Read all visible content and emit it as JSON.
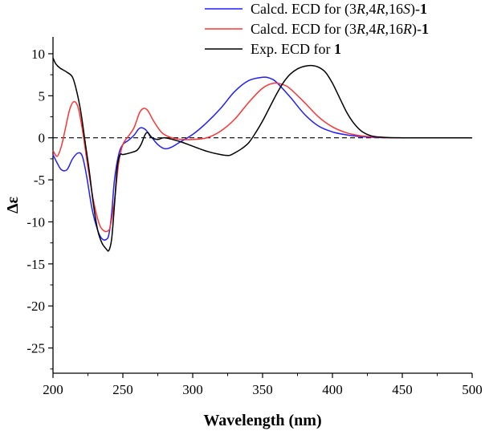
{
  "chart_data": {
    "type": "line",
    "title": "",
    "xlabel": "Wavelength (nm)",
    "ylabel": "Δε",
    "xlim": [
      200,
      500
    ],
    "ylim": [
      -28,
      12
    ],
    "xticks": [
      200,
      250,
      300,
      350,
      400,
      450,
      500
    ],
    "yticks": [
      10,
      5,
      0,
      -5,
      -10,
      -15,
      -20,
      -25
    ],
    "grid": false,
    "zero_line": "dashed",
    "legend": {
      "placement": "top-right",
      "entries": [
        {
          "series": 0,
          "prefix": "Calcd. ECD for (3",
          "parts": [
            [
              "R",
              "italic"
            ],
            [
              ",4",
              "normal"
            ],
            [
              "R",
              "italic"
            ],
            [
              ",16",
              "normal"
            ],
            [
              "S",
              "italic"
            ],
            [
              ")-",
              "normal"
            ],
            [
              "1",
              "bold"
            ]
          ]
        },
        {
          "series": 1,
          "prefix": "Calcd. ECD for  (3",
          "parts": [
            [
              "R",
              "italic"
            ],
            [
              ",4",
              "normal"
            ],
            [
              "R",
              "italic"
            ],
            [
              ",16",
              "normal"
            ],
            [
              "R",
              "italic"
            ],
            [
              ")-",
              "normal"
            ],
            [
              "1",
              "bold"
            ]
          ]
        },
        {
          "series": 2,
          "prefix": "Exp. ECD for ",
          "parts": [
            [
              "1",
              "bold"
            ]
          ]
        }
      ]
    },
    "series": [
      {
        "name": "Calcd. ECD for (3R,4R,16S)-1",
        "color": "#1f1fff",
        "x": [
          200,
          203,
          206,
          210,
          214,
          218,
          221,
          224,
          228,
          232,
          235,
          238,
          240,
          242,
          244,
          247,
          250,
          254,
          258,
          261,
          263,
          266,
          270,
          275,
          280,
          285,
          290,
          300,
          310,
          320,
          330,
          340,
          350,
          355,
          360,
          370,
          380,
          390,
          400,
          410,
          420,
          430,
          440,
          450,
          470,
          500
        ],
        "y": [
          -2,
          -3,
          -3.8,
          -3.8,
          -2.5,
          -1.8,
          -2.2,
          -4.5,
          -8.5,
          -11,
          -12,
          -12.1,
          -11.5,
          -9,
          -5,
          -2,
          -0.8,
          -0.3,
          0.3,
          1,
          1.2,
          1,
          0.2,
          -0.8,
          -1.3,
          -1.1,
          -0.6,
          0.4,
          1.8,
          3.5,
          5.5,
          6.8,
          7.2,
          7.1,
          6.6,
          4.8,
          2.8,
          1.4,
          0.7,
          0.35,
          0.15,
          0.05,
          0,
          0,
          0,
          0
        ]
      },
      {
        "name": "Calcd. ECD for (3R,4R,16R)-1",
        "color": "#ff3333",
        "x": [
          200,
          203,
          206,
          209,
          212,
          215,
          218,
          221,
          225,
          229,
          233,
          236,
          239,
          241,
          244,
          247,
          250,
          254,
          258,
          262,
          265,
          268,
          272,
          278,
          285,
          292,
          300,
          310,
          320,
          330,
          340,
          350,
          358,
          365,
          370,
          380,
          390,
          400,
          410,
          420,
          430,
          440,
          450,
          470,
          500
        ],
        "y": [
          -1.5,
          -2.2,
          -1,
          1.2,
          3.4,
          4.3,
          3.6,
          1,
          -3.5,
          -7.5,
          -10.2,
          -11,
          -11.1,
          -10.5,
          -7.5,
          -3,
          -0.8,
          0.2,
          1.2,
          3,
          3.5,
          3.2,
          2,
          0.6,
          0,
          -0.2,
          -0.2,
          0,
          0.8,
          2.2,
          4.2,
          5.9,
          6.5,
          6.3,
          5.8,
          4.2,
          2.5,
          1.3,
          0.6,
          0.25,
          0.1,
          0,
          0,
          0,
          0
        ]
      },
      {
        "name": "Exp. ECD for 1",
        "color": "#000000",
        "x": [
          200,
          202,
          205,
          210,
          214,
          217,
          220,
          223,
          226,
          229,
          232,
          235,
          238,
          240,
          242,
          244,
          246,
          248,
          250,
          255,
          260,
          263,
          266,
          268,
          270,
          275,
          280,
          290,
          300,
          310,
          320,
          326,
          330,
          335,
          340,
          345,
          350,
          355,
          360,
          365,
          370,
          375,
          380,
          385,
          390,
          395,
          400,
          405,
          410,
          415,
          420,
          425,
          430,
          440,
          450,
          460,
          480,
          500
        ],
        "y": [
          9.5,
          8.8,
          8.3,
          7.8,
          7.2,
          5.5,
          3,
          -0.5,
          -4,
          -8,
          -11,
          -12.5,
          -13.2,
          -13.4,
          -12,
          -8,
          -3.5,
          -2,
          -2,
          -1.8,
          -1.5,
          -0.8,
          0.4,
          0.6,
          0.1,
          -0.2,
          0,
          -0.4,
          -1,
          -1.6,
          -2,
          -2.1,
          -1.8,
          -1.3,
          -0.6,
          0.6,
          2,
          3.6,
          5.2,
          6.6,
          7.6,
          8.2,
          8.5,
          8.6,
          8.4,
          7.8,
          6.5,
          4.8,
          3.1,
          1.8,
          0.9,
          0.4,
          0.15,
          0.03,
          0,
          0,
          0,
          0
        ]
      }
    ]
  }
}
